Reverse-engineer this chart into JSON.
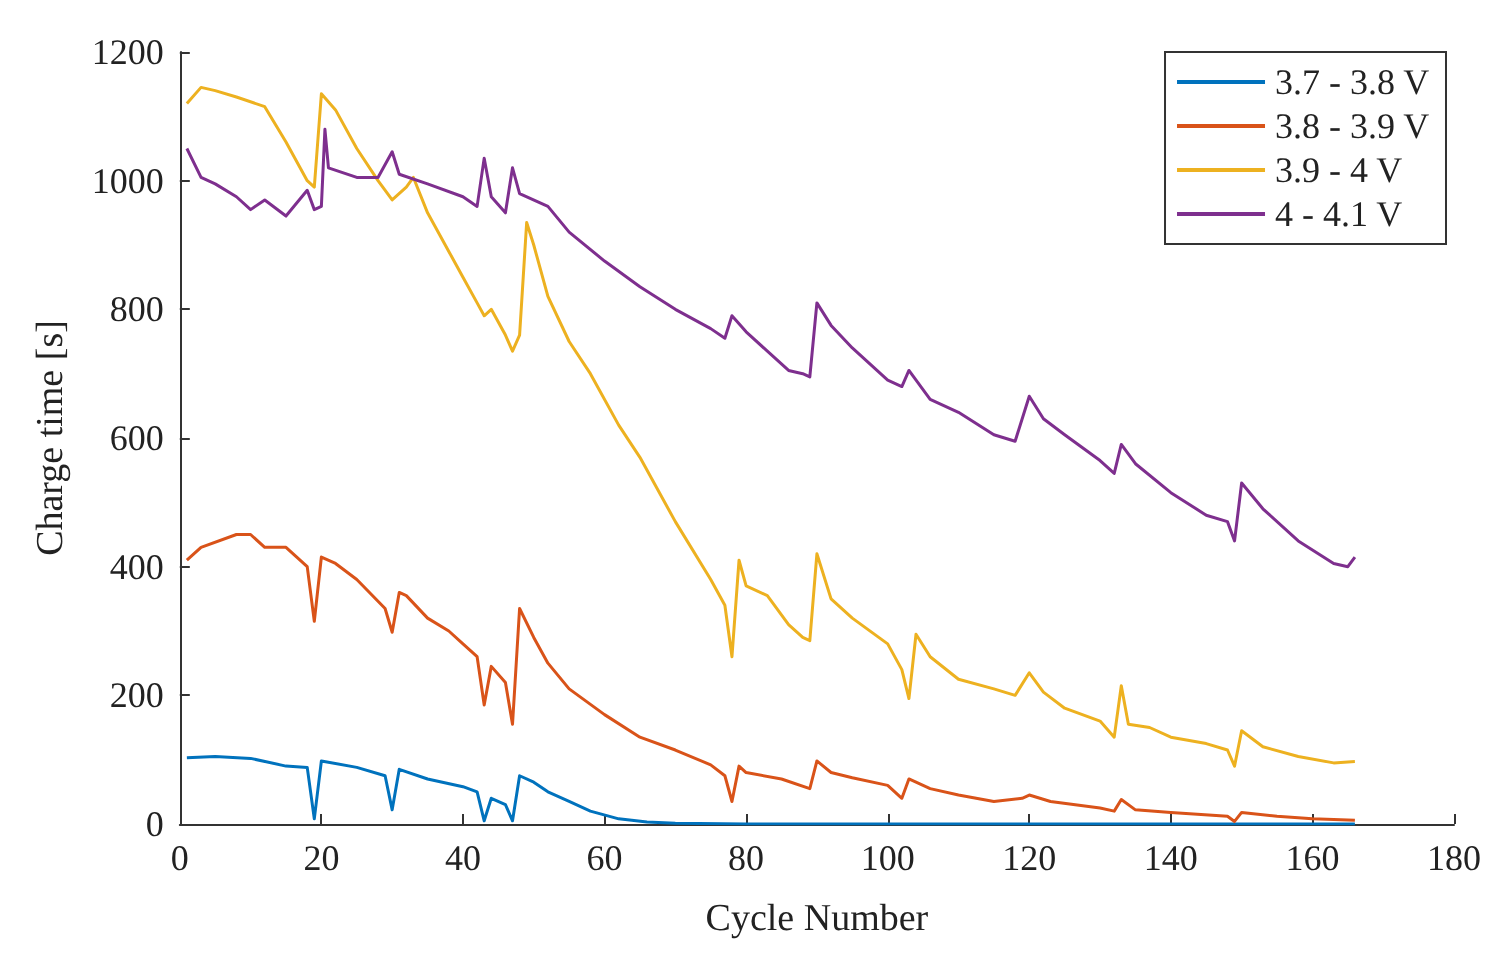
{
  "chart_data": {
    "type": "line",
    "xlabel": "Cycle Number",
    "ylabel": "Charge time [s]",
    "xlim": [
      0,
      180
    ],
    "xticks": [
      0,
      20,
      40,
      60,
      80,
      100,
      120,
      140,
      160,
      180
    ],
    "ylim": [
      0,
      1200
    ],
    "yticks": [
      0,
      200,
      400,
      600,
      800,
      1000,
      1200
    ],
    "grid": false,
    "legend": "top right",
    "marker": "none",
    "line_style": "solid",
    "series": [
      {
        "name": "3.7 - 3.8 V",
        "color": "#0072bd",
        "x": [
          1,
          5,
          10,
          15,
          18,
          19,
          20,
          25,
          29,
          30,
          31,
          35,
          40,
          42,
          43,
          44,
          46,
          47,
          48,
          50,
          52,
          55,
          58,
          62,
          66,
          70,
          80,
          120,
          166
        ],
        "values": [
          103,
          105,
          102,
          90,
          88,
          8,
          98,
          88,
          75,
          22,
          85,
          70,
          58,
          50,
          5,
          40,
          30,
          5,
          75,
          65,
          50,
          35,
          20,
          8,
          3,
          1,
          0,
          0,
          0
        ]
      },
      {
        "name": "3.8 - 3.9 V",
        "color": "#d95319",
        "x": [
          1,
          3,
          8,
          10,
          12,
          15,
          18,
          19,
          20,
          22,
          25,
          29,
          30,
          31,
          32,
          35,
          38,
          40,
          42,
          43,
          44,
          46,
          47,
          48,
          50,
          52,
          55,
          60,
          65,
          70,
          75,
          77,
          78,
          79,
          80,
          85,
          89,
          90,
          92,
          95,
          100,
          102,
          103,
          106,
          110,
          115,
          119,
          120,
          123,
          130,
          132,
          133,
          135,
          140,
          148,
          149,
          150,
          155,
          160,
          166
        ],
        "values": [
          410,
          430,
          450,
          450,
          430,
          430,
          400,
          315,
          415,
          405,
          380,
          335,
          298,
          360,
          355,
          320,
          300,
          280,
          260,
          185,
          245,
          220,
          155,
          335,
          290,
          250,
          210,
          170,
          135,
          115,
          92,
          75,
          35,
          90,
          80,
          70,
          55,
          98,
          80,
          72,
          60,
          40,
          70,
          55,
          45,
          35,
          40,
          45,
          35,
          25,
          20,
          38,
          22,
          18,
          12,
          4,
          18,
          12,
          8,
          6
        ]
      },
      {
        "name": "3.9 - 4 V",
        "color": "#edb120",
        "x": [
          1,
          3,
          5,
          8,
          12,
          15,
          18,
          19,
          20,
          22,
          25,
          28,
          30,
          32,
          33,
          35,
          38,
          40,
          42,
          43,
          44,
          46,
          47,
          48,
          49,
          50,
          52,
          55,
          58,
          62,
          65,
          70,
          75,
          77,
          78,
          79,
          80,
          83,
          86,
          88,
          89,
          90,
          92,
          95,
          100,
          102,
          103,
          104,
          106,
          110,
          115,
          118,
          120,
          122,
          125,
          130,
          132,
          133,
          134,
          137,
          140,
          145,
          148,
          149,
          150,
          153,
          158,
          163,
          166
        ],
        "values": [
          1120,
          1145,
          1140,
          1130,
          1115,
          1060,
          1000,
          990,
          1135,
          1110,
          1050,
          1000,
          970,
          990,
          1005,
          950,
          890,
          850,
          810,
          790,
          800,
          760,
          735,
          760,
          935,
          900,
          820,
          750,
          700,
          620,
          570,
          470,
          380,
          340,
          260,
          410,
          370,
          355,
          310,
          290,
          285,
          420,
          350,
          320,
          280,
          240,
          195,
          295,
          260,
          225,
          210,
          200,
          235,
          205,
          180,
          160,
          135,
          215,
          155,
          150,
          135,
          125,
          115,
          90,
          145,
          120,
          105,
          95,
          97
        ]
      },
      {
        "name": "4 - 4.1 V",
        "color": "#7e2f8e",
        "x": [
          1,
          3,
          5,
          8,
          10,
          12,
          15,
          18,
          19,
          20,
          20.5,
          21,
          25,
          28,
          30,
          31,
          35,
          40,
          42,
          43,
          44,
          46,
          47,
          48,
          52,
          55,
          60,
          65,
          70,
          75,
          77,
          78,
          80,
          83,
          86,
          88,
          89,
          90,
          92,
          95,
          100,
          102,
          103,
          106,
          110,
          115,
          118,
          120,
          122,
          125,
          130,
          132,
          133,
          135,
          140,
          145,
          148,
          149,
          150,
          153,
          158,
          163,
          165,
          166
        ],
        "values": [
          1050,
          1005,
          995,
          975,
          955,
          970,
          945,
          985,
          955,
          960,
          1080,
          1020,
          1005,
          1005,
          1045,
          1010,
          995,
          975,
          960,
          1035,
          975,
          950,
          1020,
          980,
          960,
          920,
          875,
          835,
          800,
          770,
          755,
          790,
          765,
          735,
          705,
          700,
          695,
          810,
          775,
          740,
          690,
          680,
          705,
          660,
          640,
          605,
          595,
          665,
          630,
          605,
          565,
          545,
          590,
          560,
          515,
          480,
          470,
          440,
          530,
          490,
          440,
          405,
          400,
          415
        ]
      }
    ]
  }
}
